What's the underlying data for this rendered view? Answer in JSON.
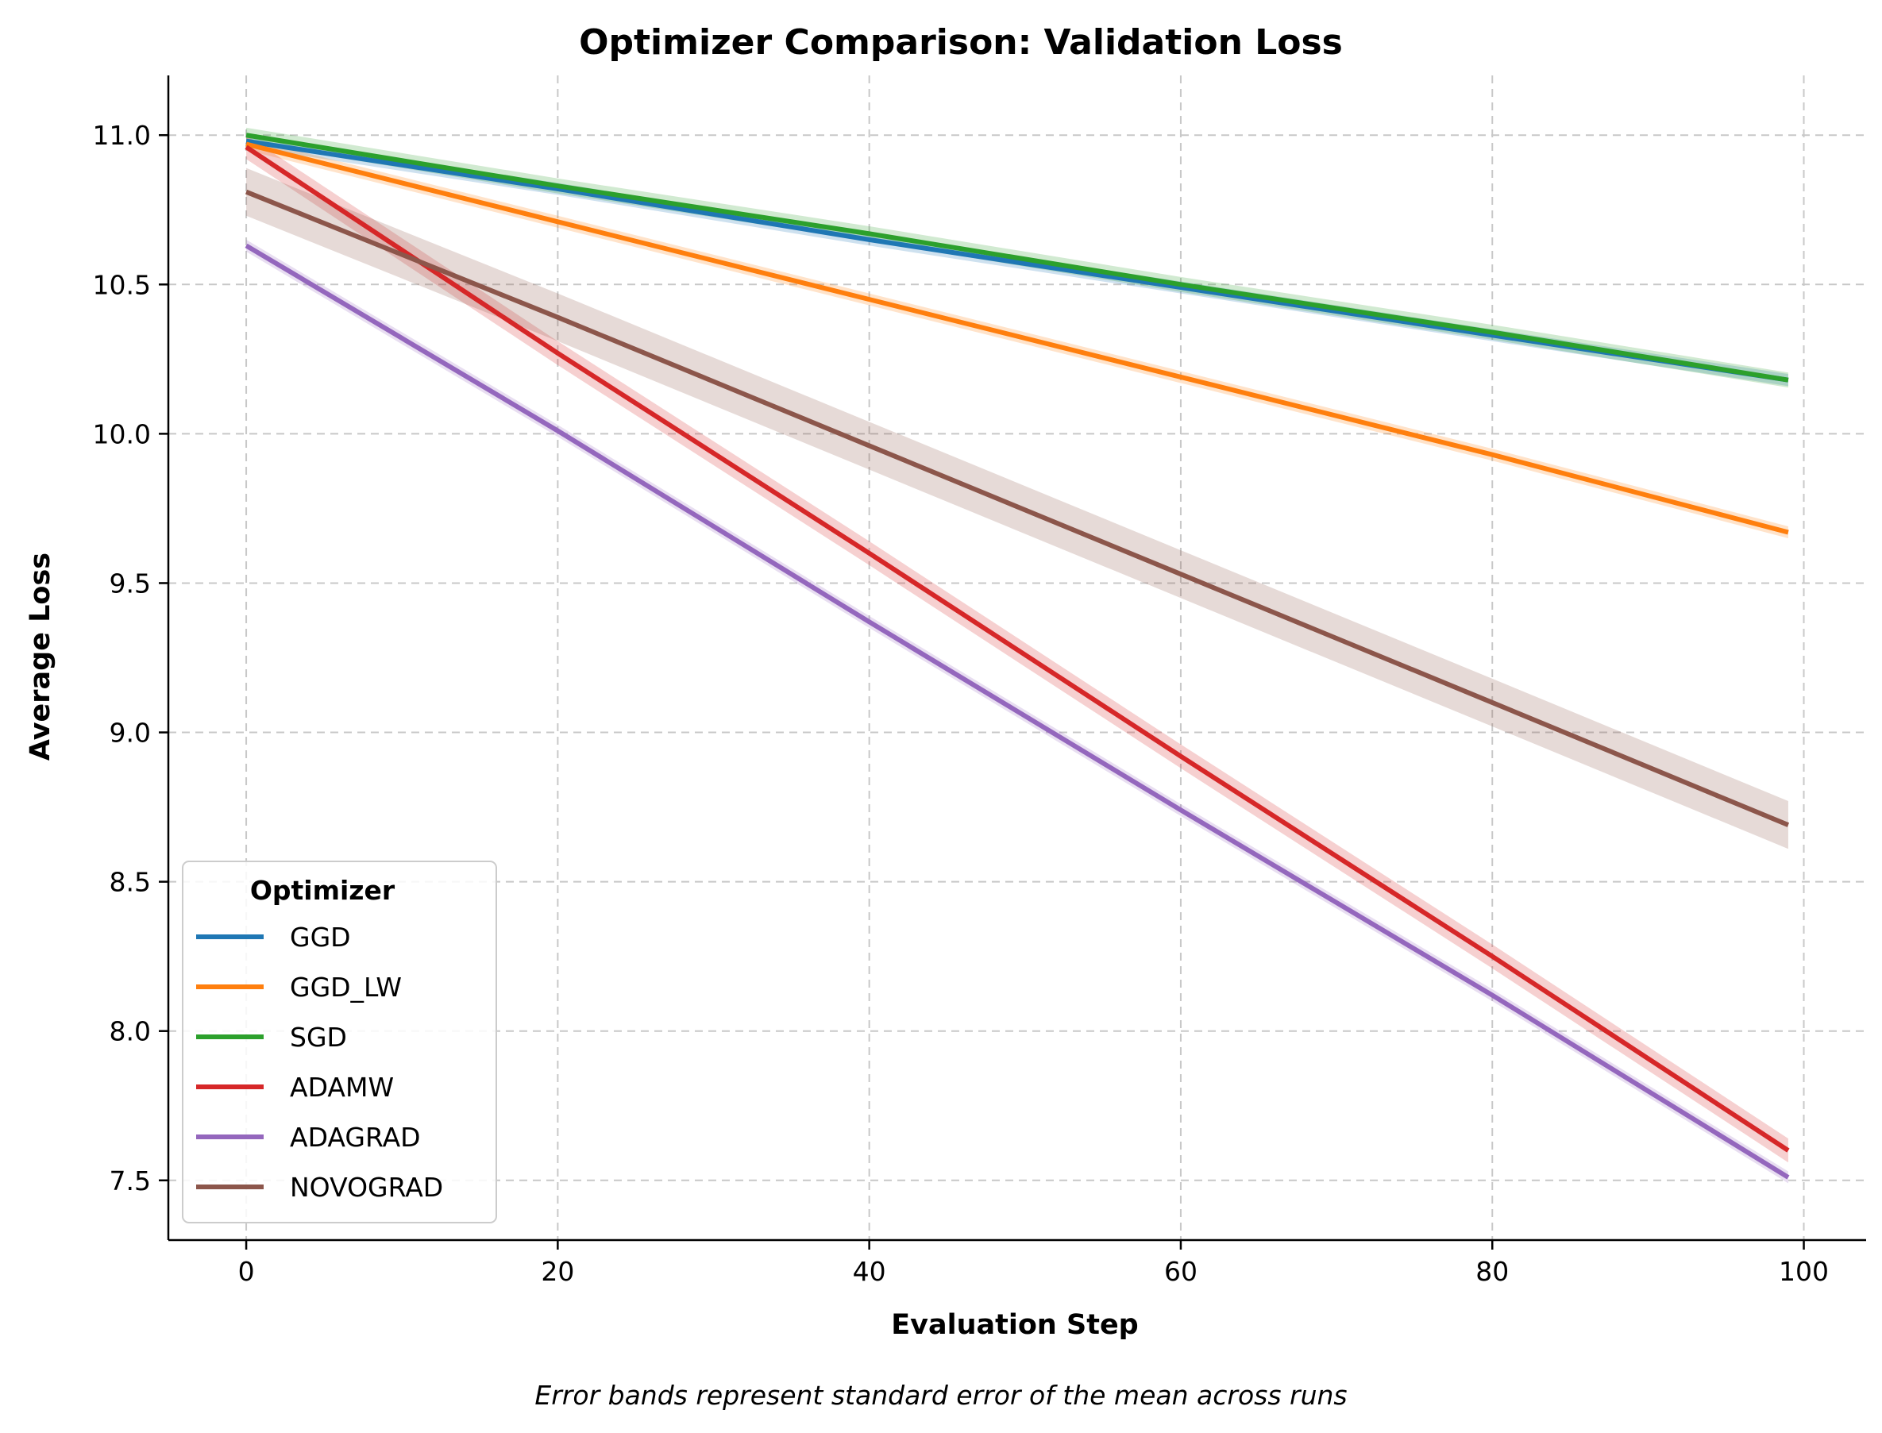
{
  "chart_data": {
    "type": "line",
    "title": "Optimizer Comparison: Validation Loss",
    "xlabel": "Evaluation Step",
    "ylabel": "Average Loss",
    "xlim": [
      -5,
      104
    ],
    "ylim": [
      7.3,
      11.2
    ],
    "xticks": [
      0,
      20,
      40,
      60,
      80,
      100
    ],
    "yticks": [
      7.5,
      8.0,
      8.5,
      9.0,
      9.5,
      10.0,
      10.5,
      11.0
    ],
    "grid": true,
    "legend": {
      "title": "Optimizer",
      "placement": "lower-left"
    },
    "error_band_note": "Error bands represent standard error of the mean across runs",
    "series": [
      {
        "name": "GGD",
        "color": "#1f77b4",
        "x": [
          0,
          20,
          40,
          60,
          80,
          99
        ],
        "y": [
          10.98,
          10.82,
          10.65,
          10.49,
          10.33,
          10.18
        ],
        "err": 0.02
      },
      {
        "name": "GGD_LW",
        "color": "#ff7f0e",
        "x": [
          0,
          20,
          40,
          60,
          80,
          99
        ],
        "y": [
          10.97,
          10.71,
          10.45,
          10.19,
          9.93,
          9.67
        ],
        "err": 0.02
      },
      {
        "name": "SGD",
        "color": "#2ca02c",
        "x": [
          0,
          20,
          40,
          60,
          80,
          99
        ],
        "y": [
          11.0,
          10.83,
          10.67,
          10.5,
          10.34,
          10.18
        ],
        "err": 0.025
      },
      {
        "name": "ADAMW",
        "color": "#d62728",
        "x": [
          0,
          20,
          40,
          60,
          80,
          99
        ],
        "y": [
          10.96,
          10.27,
          9.6,
          8.92,
          8.25,
          7.6
        ],
        "err": 0.04
      },
      {
        "name": "ADAGRAD",
        "color": "#9467bd",
        "x": [
          0,
          20,
          40,
          60,
          80,
          99
        ],
        "y": [
          10.63,
          10.01,
          9.37,
          8.74,
          8.12,
          7.51
        ],
        "err": 0.02
      },
      {
        "name": "NOVOGRAD",
        "color": "#8c564b",
        "x": [
          0,
          20,
          40,
          60,
          80,
          99
        ],
        "y": [
          10.81,
          10.39,
          9.96,
          9.53,
          9.1,
          8.69
        ],
        "err": 0.08
      }
    ]
  }
}
